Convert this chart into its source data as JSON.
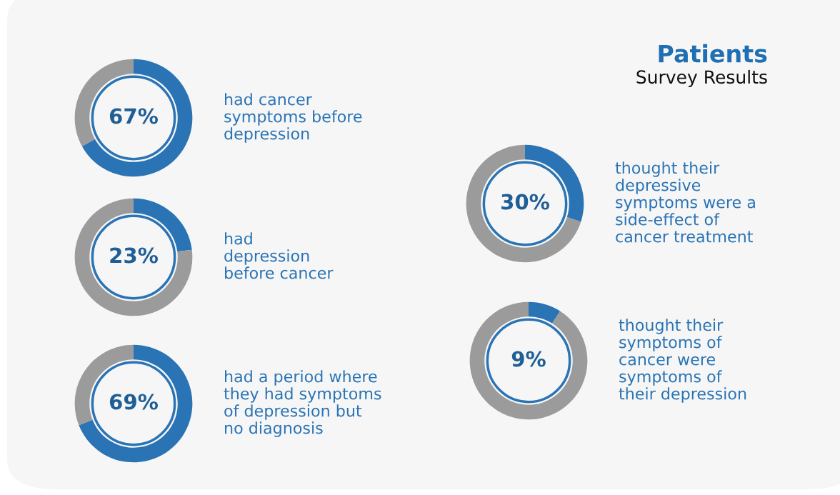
{
  "chart_data": [
    {
      "type": "other",
      "title": "Patients",
      "subtitle": "Survey Results"
    },
    {
      "type": "donut",
      "categories": [
        null,
        null
      ],
      "values": [
        67,
        33
      ],
      "colors": [
        "#2a74b5",
        "#9b9b9b"
      ],
      "value_labels": [
        "67%",
        null
      ],
      "annotations": [
        "had cancer\nsymptoms before\ndepression"
      ]
    },
    {
      "type": "donut",
      "categories": [
        null,
        null
      ],
      "values": [
        23,
        77
      ],
      "colors": [
        "#2a74b5",
        "#9b9b9b"
      ],
      "value_labels": [
        "23%",
        null
      ],
      "annotations": [
        "had\ndepression\nbefore cancer"
      ]
    },
    {
      "type": "donut",
      "categories": [
        null,
        null
      ],
      "values": [
        69,
        31
      ],
      "colors": [
        "#2a74b5",
        "#9b9b9b"
      ],
      "value_labels": [
        "69%",
        null
      ],
      "annotations": [
        "had a period where\nthey had symptoms\nof depression but\nno diagnosis"
      ]
    },
    {
      "type": "donut",
      "categories": [
        null,
        null
      ],
      "values": [
        30,
        70
      ],
      "colors": [
        "#2a74b5",
        "#9b9b9b"
      ],
      "value_labels": [
        "30%",
        null
      ],
      "annotations": [
        "thought their\ndepressive\nsymptoms were a\nside-effect of\ncancer treatment"
      ]
    },
    {
      "type": "donut",
      "categories": [
        null,
        null
      ],
      "values": [
        9,
        91
      ],
      "colors": [
        "#2a74b5",
        "#9b9b9b"
      ],
      "value_labels": [
        "9%",
        null
      ],
      "annotations": [
        "thought their\nsymptoms of\ncancer were\nsymptoms of\ntheir depression"
      ]
    }
  ]
}
